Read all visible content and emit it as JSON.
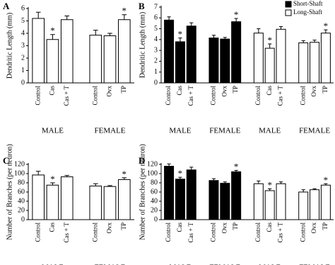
{
  "chart_data": [
    {
      "type": "bar",
      "label": "A",
      "ylabel": "Dendritic Length (mm)",
      "categories": [
        "Control",
        "Cas",
        "Cas + T",
        "Control",
        "Ovx",
        "TP"
      ],
      "groups": [
        "MALE",
        "FEMALE"
      ],
      "series": [
        {
          "color": "#ffffff",
          "values": [
            5.2,
            3.5,
            5.1,
            3.85,
            3.8,
            5.1
          ],
          "errors": [
            0.5,
            0.4,
            0.3,
            0.4,
            0.2,
            0.4
          ],
          "stars": [
            null,
            "*",
            null,
            null,
            null,
            "*"
          ]
        }
      ],
      "ylim": [
        0,
        6
      ],
      "yticks": [
        0,
        1,
        2,
        3,
        4,
        5,
        6
      ]
    },
    {
      "type": "bar",
      "label": "B",
      "ylabel": "Dendritic Length (mm)",
      "categories": [
        "Control",
        "Cas",
        "Cas + T",
        "Control",
        "Ovx",
        "TP"
      ],
      "groups": [
        "MALE",
        "FEMALE"
      ],
      "series": [
        {
          "name": "Short-Shaft",
          "color": "#000000",
          "values": [
            5.8,
            3.8,
            5.25,
            4.15,
            4.05,
            5.65
          ],
          "errors": [
            0.3,
            0.35,
            0.3,
            0.25,
            0.15,
            0.3
          ],
          "stars": [
            null,
            "*",
            null,
            null,
            null,
            "*"
          ]
        },
        {
          "name": "Long-Shaft",
          "color": "#ffffff",
          "values": [
            4.6,
            3.2,
            4.95,
            3.7,
            3.75,
            4.6
          ],
          "errors": [
            0.4,
            0.4,
            0.25,
            0.2,
            0.2,
            0.3
          ],
          "stars": [
            null,
            "*",
            null,
            null,
            null,
            "*"
          ]
        }
      ],
      "ylim": [
        0,
        7
      ],
      "yticks": [
        0,
        1,
        2,
        3,
        4,
        5,
        6,
        7
      ]
    },
    {
      "type": "bar",
      "label": "C",
      "ylabel": "Number of Branches (per neuron)",
      "categories": [
        "Control",
        "Cas",
        "Cas + T",
        "Control",
        "Ovx",
        "TP"
      ],
      "groups": [
        "MALE",
        "FEMALE"
      ],
      "series": [
        {
          "color": "#ffffff",
          "values": [
            97,
            75,
            93,
            73,
            72,
            87
          ],
          "errors": [
            8,
            5,
            3,
            5,
            2,
            4
          ],
          "stars": [
            null,
            "*",
            null,
            null,
            null,
            "*"
          ]
        }
      ],
      "ylim": [
        0,
        120
      ],
      "yticks": [
        0,
        20,
        40,
        60,
        80,
        100,
        120
      ]
    },
    {
      "type": "bar",
      "label": "D",
      "ylabel": "Number of Branches (per neuron)",
      "categories": [
        "Control",
        "Cas",
        "Cas + T",
        "Control",
        "Ovx",
        "TP"
      ],
      "groups": [
        "MALE",
        "FEMALE"
      ],
      "series": [
        {
          "color": "#000000",
          "values": [
            116,
            88,
            108,
            85,
            79,
            104
          ],
          "errors": [
            5,
            4,
            6,
            4,
            3,
            3
          ],
          "stars": [
            null,
            "*",
            null,
            null,
            null,
            "*"
          ]
        },
        {
          "color": "#ffffff",
          "values": [
            78,
            63,
            78,
            60,
            65,
            75
          ],
          "errors": [
            6,
            4,
            4,
            5,
            2,
            3
          ],
          "stars": [
            null,
            "*",
            null,
            null,
            null,
            "*"
          ]
        }
      ],
      "ylim": [
        0,
        120
      ],
      "yticks": [
        0,
        20,
        40,
        60,
        80,
        100,
        120
      ]
    }
  ]
}
